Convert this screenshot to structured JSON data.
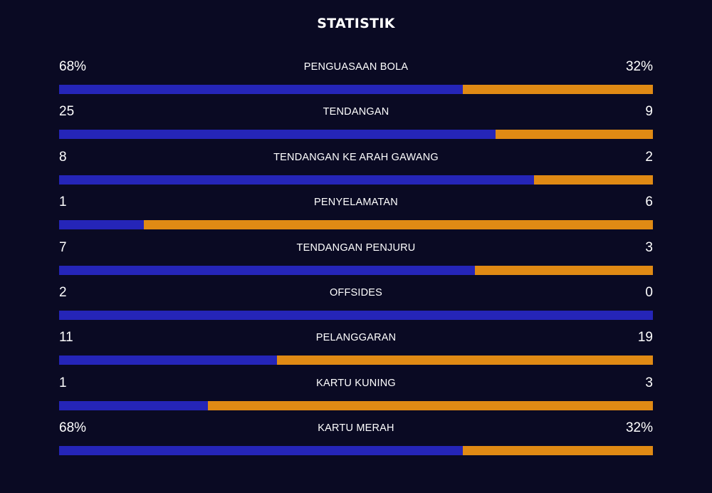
{
  "title": "STATISTIK",
  "colors": {
    "background": "#0a0a23",
    "home": "#2525b8",
    "away": "#e08a14"
  },
  "stats": [
    {
      "label": "PENGUASAAN BOLA",
      "home_display": "68%",
      "away_display": "32%",
      "home": 68,
      "away": 32
    },
    {
      "label": "TENDANGAN",
      "home_display": "25",
      "away_display": "9",
      "home": 25,
      "away": 9
    },
    {
      "label": "TENDANGAN KE ARAH GAWANG",
      "home_display": "8",
      "away_display": "2",
      "home": 8,
      "away": 2
    },
    {
      "label": "PENYELAMATAN",
      "home_display": "1",
      "away_display": "6",
      "home": 1,
      "away": 6
    },
    {
      "label": "TENDANGAN PENJURU",
      "home_display": "7",
      "away_display": "3",
      "home": 7,
      "away": 3
    },
    {
      "label": "OFFSIDES",
      "home_display": "2",
      "away_display": "0",
      "home": 2,
      "away": 0
    },
    {
      "label": "PELANGGARAN",
      "home_display": "11",
      "away_display": "19",
      "home": 11,
      "away": 19
    },
    {
      "label": "KARTU KUNING",
      "home_display": "1",
      "away_display": "3",
      "home": 1,
      "away": 3
    },
    {
      "label": "KARTU MERAH",
      "home_display": "68%",
      "away_display": "32%",
      "home": 68,
      "away": 32
    }
  ]
}
